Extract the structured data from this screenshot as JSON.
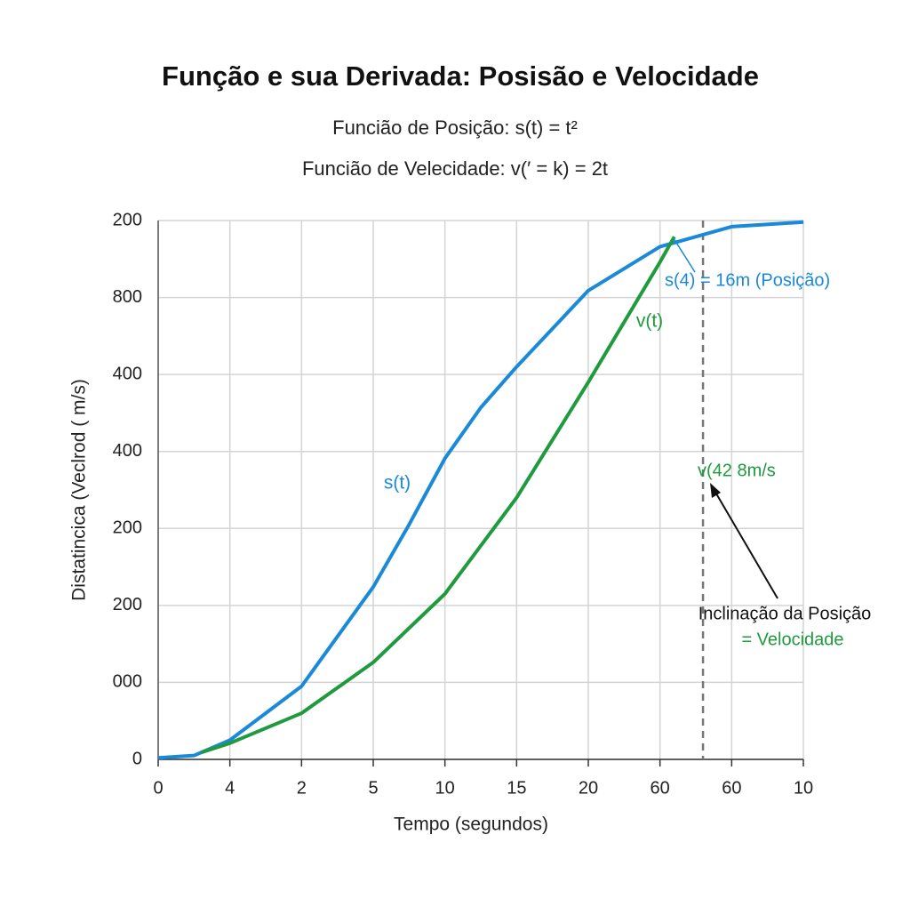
{
  "chart_data": {
    "type": "line",
    "title": "Função e sua Derivada: Posisão e Velocidade",
    "subtitles": [
      "Funcião de Posição: s(t) = t²",
      "Funcião de Velecidade: v(′ = k) = 2t"
    ],
    "x_label": "Tempo (segundos)",
    "y_label": "Distatincica (Veclrod ( m/s)",
    "xlim": [
      0,
      9
    ],
    "ylim": [
      0,
      7
    ],
    "xticks": [
      0,
      {
        "value": 1,
        "label": "4"
      },
      {
        "value": 2,
        "label": "2"
      },
      {
        "value": 3,
        "label": "5"
      },
      {
        "value": 4,
        "label": "10"
      },
      {
        "value": 5,
        "label": "15"
      },
      {
        "value": 6,
        "label": "20"
      },
      {
        "value": 7,
        "label": "60"
      },
      {
        "value": 8,
        "label": "60"
      },
      {
        "value": 9,
        "label": "10"
      }
    ],
    "yticks": [
      0,
      {
        "value": 1,
        "label": "000"
      },
      {
        "value": 2,
        "label": "200"
      },
      {
        "value": 3,
        "label": "200"
      },
      {
        "value": 4,
        "label": "400"
      },
      {
        "value": 5,
        "label": "400"
      },
      {
        "value": 6,
        "label": "800"
      },
      {
        "value": 7,
        "label": "200"
      }
    ],
    "grid": true,
    "series": [
      {
        "name": "s(t)",
        "color": "#1a8ad8",
        "x": [
          0,
          0.5,
          1,
          2,
          3,
          3.5,
          4,
          4.5,
          5,
          6,
          7,
          8,
          9
        ],
        "values": [
          0.02,
          0.05,
          0.25,
          0.95,
          2.24,
          3.05,
          3.91,
          4.57,
          5.1,
          6.09,
          6.66,
          6.92,
          6.98
        ]
      },
      {
        "name": "v(t)",
        "color": "#1f9a3e",
        "x": [
          0.6,
          1,
          2,
          3,
          4,
          5,
          6,
          7,
          7.2
        ],
        "values": [
          0.09,
          0.21,
          0.6,
          1.26,
          2.15,
          3.4,
          4.9,
          6.46,
          6.79
        ]
      }
    ],
    "vline": 7.6,
    "annotations": [
      "s(4) = 16m (Posição)",
      "v(42 8m/s",
      "Inclinação da Posição",
      "= Velocidade"
    ]
  }
}
